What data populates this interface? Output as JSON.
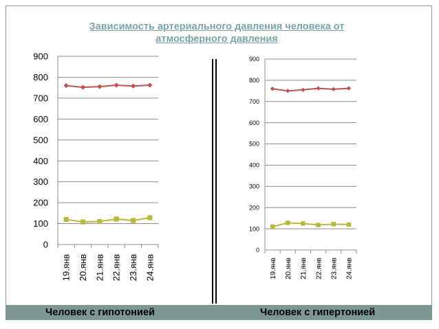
{
  "slide": {
    "title": "Зависимость артериального давления человека от атмосферного давления",
    "footer_left": "Человек с гипотонией",
    "footer_right": "Человек с гипертонией"
  },
  "colors": {
    "title": "#7aa3ab",
    "series_upper": "#c0504d",
    "series_lower": "#b8b83a",
    "footer_bar": "#7d9795",
    "gridline": "#8c8c8c"
  },
  "chart_data": [
    {
      "type": "line",
      "categories": [
        "19.янв",
        "20.янв",
        "21.янв",
        "22.янв",
        "23.янв",
        "24.янв"
      ],
      "series": [
        {
          "values": [
            760,
            752,
            755,
            762,
            758,
            762
          ]
        },
        {
          "values": [
            120,
            108,
            110,
            122,
            115,
            128
          ]
        }
      ],
      "ylim": [
        0,
        900
      ],
      "yticks": [
        0,
        100,
        200,
        300,
        400,
        500,
        600,
        700,
        800,
        900
      ],
      "grid": true,
      "legend": "none"
    },
    {
      "type": "line",
      "categories": [
        "19.янв",
        "20.янв",
        "21.янв",
        "22.янв",
        "23.янв",
        "24.янв"
      ],
      "series": [
        {
          "values": [
            760,
            750,
            755,
            762,
            758,
            762
          ]
        },
        {
          "values": [
            110,
            128,
            125,
            118,
            122,
            120
          ]
        }
      ],
      "ylim": [
        0,
        900
      ],
      "yticks": [
        0,
        100,
        200,
        300,
        400,
        500,
        600,
        700,
        800,
        900
      ],
      "grid": true,
      "legend": "none"
    }
  ]
}
